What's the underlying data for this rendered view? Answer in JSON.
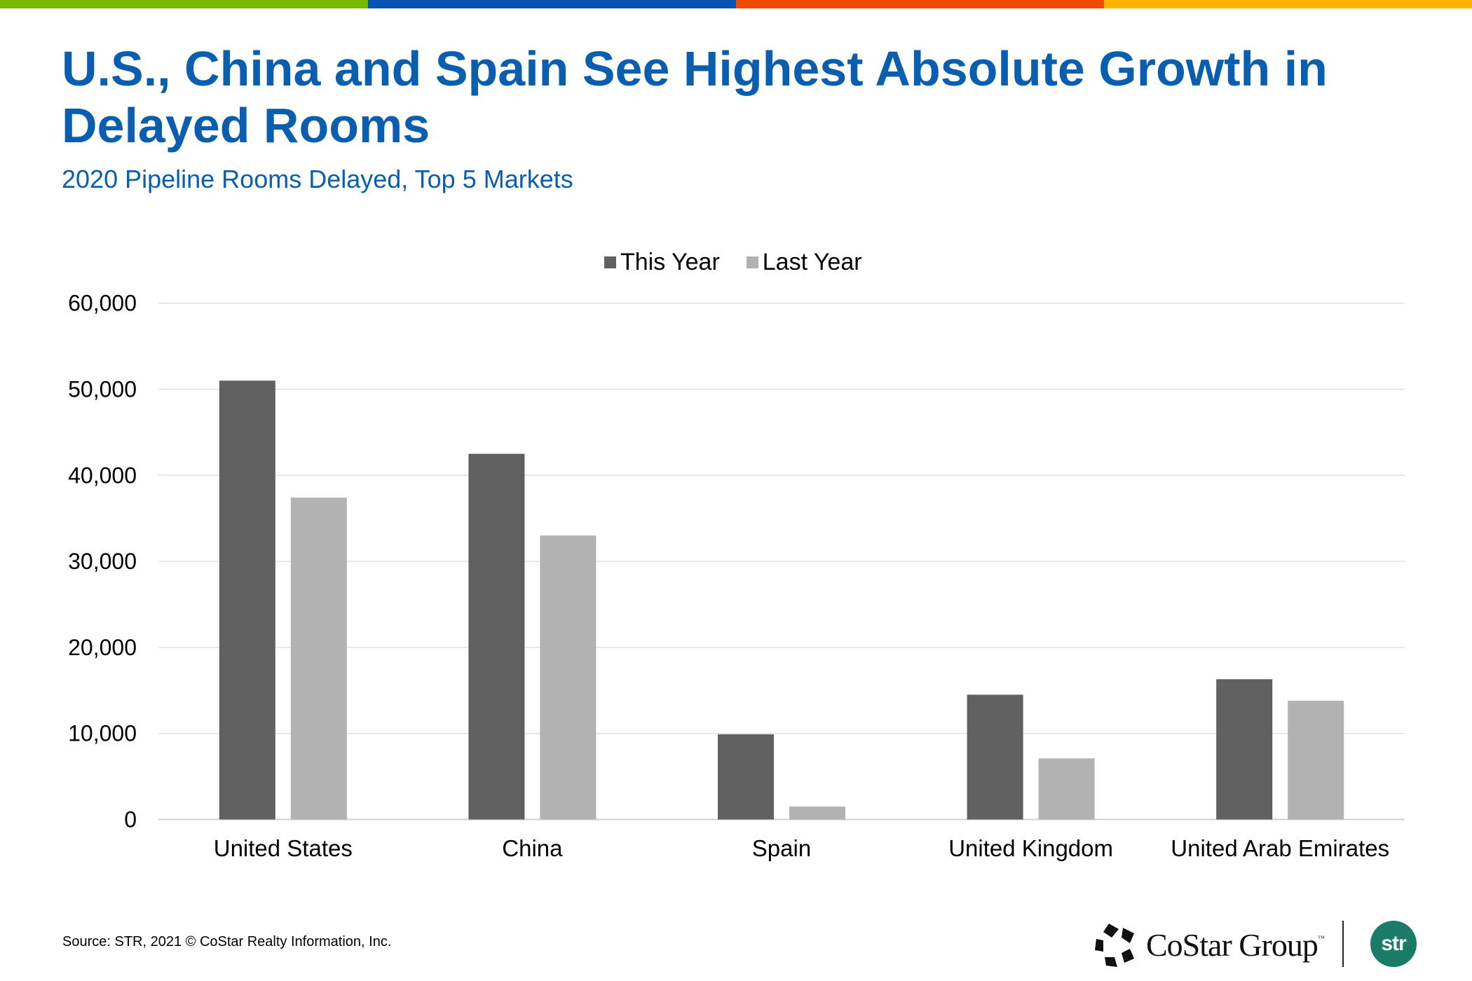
{
  "top_stripe": {
    "colors": [
      "#76B900",
      "#0455B3",
      "#EE4B00",
      "#FFB200"
    ]
  },
  "header": {
    "title": "U.S., China and Spain See Highest Absolute Growth in Delayed Rooms",
    "subtitle": "2020 Pipeline Rooms Delayed, Top 5 Markets",
    "title_color": "#0A5EB0"
  },
  "chart_data": {
    "type": "bar",
    "title": "2020 Pipeline Rooms Delayed, Top 5 Markets",
    "xlabel": "",
    "ylabel": "",
    "categories": [
      "United States",
      "China",
      "Spain",
      "United Kingdom",
      "United Arab Emirates"
    ],
    "series": [
      {
        "name": "This Year",
        "color": "#606060",
        "values": [
          51000,
          42500,
          9900,
          14500,
          16300
        ]
      },
      {
        "name": "Last Year",
        "color": "#B2B2B2",
        "values": [
          37400,
          33000,
          1500,
          7100,
          13800
        ]
      }
    ],
    "ylim": [
      0,
      60000
    ],
    "yticks": [
      0,
      10000,
      20000,
      30000,
      40000,
      50000,
      60000
    ],
    "ytick_labels": [
      "0",
      "10,000",
      "20,000",
      "30,000",
      "40,000",
      "50,000",
      "60,000"
    ],
    "grid": true,
    "legend_position": "top-center"
  },
  "footer": {
    "source": "Source: STR, 2021 © CoStar Realty Information, Inc.",
    "costar_logo_text": "CoStar Group",
    "costar_tm": "™",
    "str_logo_text": "str",
    "str_color": "#1A7B66"
  }
}
